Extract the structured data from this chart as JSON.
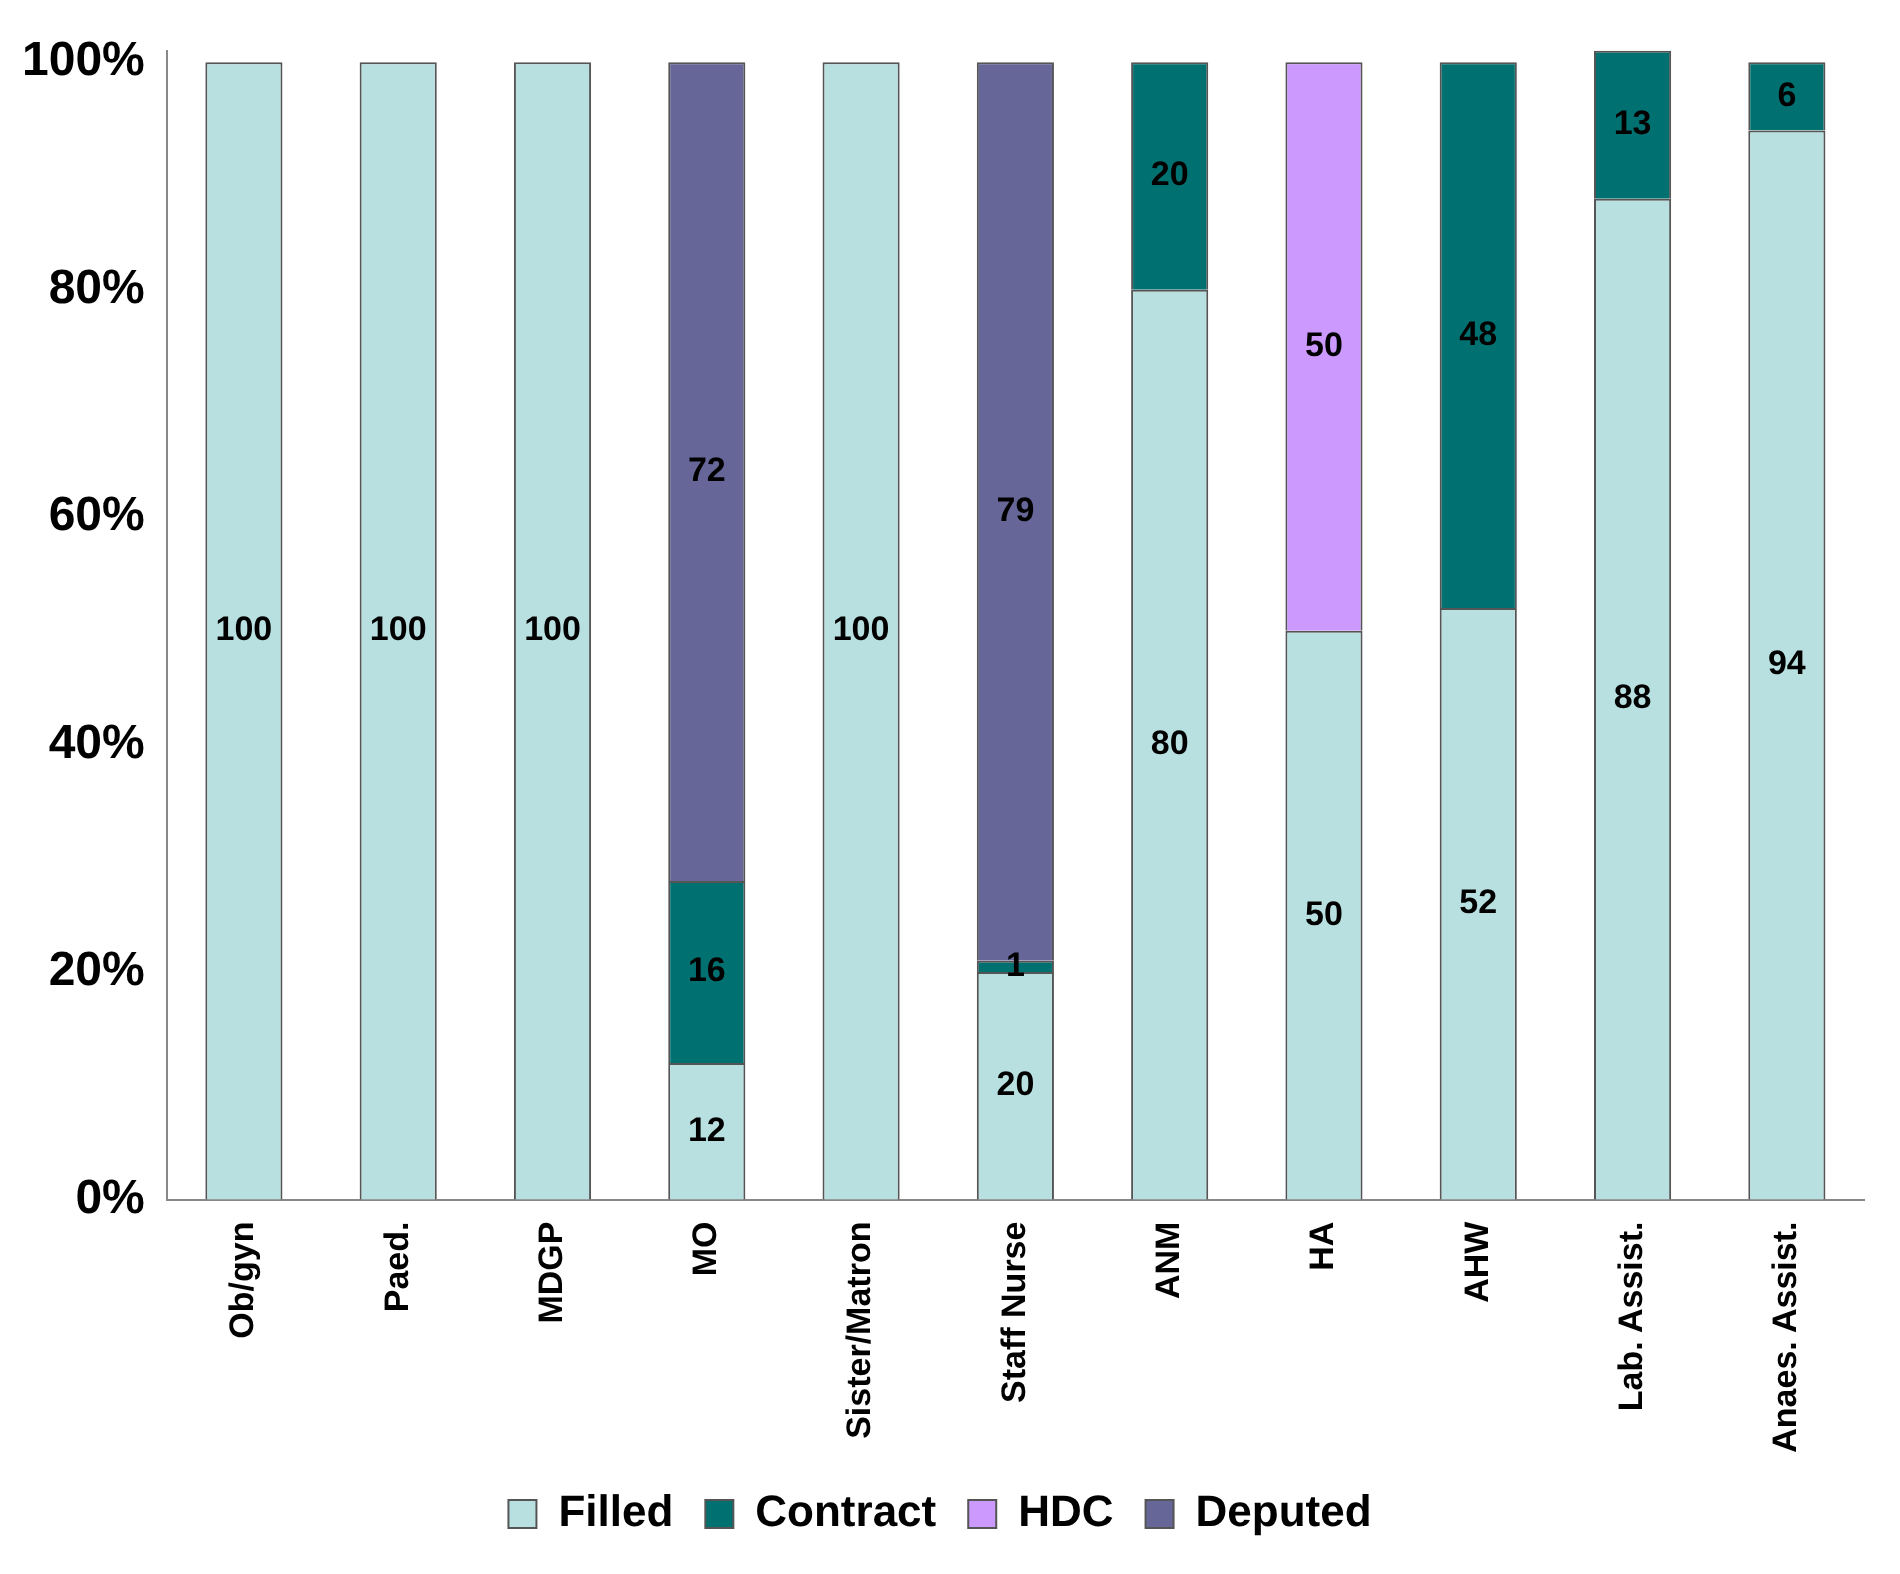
{
  "chart_data": {
    "type": "bar",
    "stacked": true,
    "categories": [
      "Ob/gyn",
      "Paed.",
      "MDGP",
      "MO",
      "Sister/Matron",
      "Staff Nurse",
      "ANM",
      "HA",
      "AHW",
      "Lab. Assist.",
      "Anaes. Assist."
    ],
    "series": [
      {
        "name": "Filled",
        "color": "#b8e0e0",
        "values": [
          100,
          100,
          100,
          12,
          100,
          20,
          80,
          50,
          52,
          88,
          94
        ]
      },
      {
        "name": "Contract",
        "color": "#007070",
        "values": [
          null,
          null,
          null,
          16,
          null,
          1,
          20,
          null,
          48,
          13,
          6
        ]
      },
      {
        "name": "HDC",
        "color": "#cc99ff",
        "values": [
          null,
          null,
          null,
          null,
          null,
          null,
          null,
          50,
          null,
          null,
          null
        ]
      },
      {
        "name": "Deputed",
        "color": "#666699",
        "values": [
          null,
          null,
          null,
          72,
          null,
          79,
          null,
          null,
          null,
          null,
          null
        ]
      }
    ],
    "ylim": [
      0,
      101
    ],
    "yticks": [
      {
        "value": 0,
        "label": "0%"
      },
      {
        "value": 20,
        "label": "20%"
      },
      {
        "value": 40,
        "label": "40%"
      },
      {
        "value": 60,
        "label": "60%"
      },
      {
        "value": 80,
        "label": "80%"
      },
      {
        "value": 100,
        "label": "100%"
      }
    ],
    "grid": false,
    "legend": "bottom",
    "data_labels": true
  }
}
